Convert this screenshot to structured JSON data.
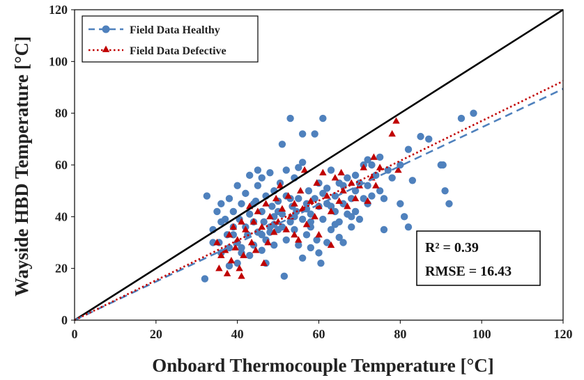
{
  "chart_data": {
    "type": "scatter",
    "title": "",
    "xlabel": "Onboard Thermocouple Temperature [°C]",
    "ylabel": "Wayside HBD Temperature [°C]",
    "xlim": [
      0,
      120
    ],
    "ylim": [
      0,
      120
    ],
    "x_ticks": [
      "0",
      "20",
      "40",
      "60",
      "80",
      "100",
      "120"
    ],
    "y_ticks": [
      "0",
      "20",
      "40",
      "60",
      "80",
      "100",
      "120"
    ],
    "grid": false,
    "legend_position": "top-left",
    "colors": {
      "healthy": "#4f81bd",
      "defective": "#c00000",
      "reference": "#000000"
    },
    "series": [
      {
        "name": "Field Data Healthy",
        "marker": "circle",
        "trendline": {
          "style": "dashed",
          "slope": 0.745,
          "intercept": 0
        },
        "points": [
          [
            32,
            16
          ],
          [
            32.5,
            48
          ],
          [
            34,
            35
          ],
          [
            35,
            42
          ],
          [
            35.5,
            30
          ],
          [
            36,
            45
          ],
          [
            36,
            26
          ],
          [
            37,
            39
          ],
          [
            37.5,
            33
          ],
          [
            38,
            47
          ],
          [
            38,
            28
          ],
          [
            39,
            42
          ],
          [
            39,
            36
          ],
          [
            40,
            52
          ],
          [
            40,
            30
          ],
          [
            40.5,
            39
          ],
          [
            41,
            45
          ],
          [
            41,
            26
          ],
          [
            42,
            36
          ],
          [
            42,
            49
          ],
          [
            42.5,
            33
          ],
          [
            43,
            41
          ],
          [
            43,
            56
          ],
          [
            44,
            38
          ],
          [
            44,
            29
          ],
          [
            44.5,
            46
          ],
          [
            45,
            34
          ],
          [
            45,
            52
          ],
          [
            46,
            42
          ],
          [
            46,
            27
          ],
          [
            46.5,
            38
          ],
          [
            47,
            48
          ],
          [
            47,
            31
          ],
          [
            48,
            36
          ],
          [
            48,
            57
          ],
          [
            48.5,
            44
          ],
          [
            49,
            40
          ],
          [
            49,
            29
          ],
          [
            50,
            46
          ],
          [
            50,
            35
          ],
          [
            50.5,
            53
          ],
          [
            51,
            41
          ],
          [
            51,
            68
          ],
          [
            51.5,
            17
          ],
          [
            52,
            31
          ],
          [
            52,
            48
          ],
          [
            53,
            38
          ],
          [
            53,
            78
          ],
          [
            53.5,
            44
          ],
          [
            54,
            35
          ],
          [
            54,
            55
          ],
          [
            54.5,
            42
          ],
          [
            55,
            29
          ],
          [
            55,
            47
          ],
          [
            56,
            39
          ],
          [
            56,
            72
          ],
          [
            56,
            61
          ],
          [
            57,
            45
          ],
          [
            57,
            33
          ],
          [
            57.5,
            50
          ],
          [
            58,
            41
          ],
          [
            58,
            36
          ],
          [
            59,
            72
          ],
          [
            59,
            47
          ],
          [
            59.5,
            31
          ],
          [
            60,
            44
          ],
          [
            60,
            53
          ],
          [
            60.5,
            22
          ],
          [
            61,
            78
          ],
          [
            61,
            39
          ],
          [
            62,
            45
          ],
          [
            62,
            51
          ],
          [
            63,
            35
          ],
          [
            63,
            58
          ],
          [
            64,
            42
          ],
          [
            64,
            48
          ],
          [
            65,
            38
          ],
          [
            65,
            53
          ],
          [
            66,
            30
          ],
          [
            66,
            45
          ],
          [
            67,
            41
          ],
          [
            67,
            55
          ],
          [
            68,
            47
          ],
          [
            68,
            36
          ],
          [
            69,
            50
          ],
          [
            69,
            42
          ],
          [
            70,
            53
          ],
          [
            70,
            39
          ],
          [
            71,
            60
          ],
          [
            71,
            47
          ],
          [
            72,
            52
          ],
          [
            72,
            62
          ],
          [
            73,
            48
          ],
          [
            74,
            56
          ],
          [
            75,
            50
          ],
          [
            75,
            63
          ],
          [
            76,
            35
          ],
          [
            76,
            47
          ],
          [
            77,
            58
          ],
          [
            78,
            55
          ],
          [
            80,
            45
          ],
          [
            80,
            60
          ],
          [
            81,
            40
          ],
          [
            82,
            36
          ],
          [
            82,
            66
          ],
          [
            83,
            54
          ],
          [
            85,
            71
          ],
          [
            87,
            70
          ],
          [
            90,
            60
          ],
          [
            90.5,
            60
          ],
          [
            91,
            50
          ],
          [
            92,
            45
          ],
          [
            95,
            78
          ],
          [
            98,
            80
          ],
          [
            45,
            58
          ],
          [
            52,
            58
          ],
          [
            55,
            59
          ],
          [
            48,
            34
          ],
          [
            43,
            25
          ],
          [
            47,
            22
          ],
          [
            56,
            24
          ],
          [
            60,
            26
          ],
          [
            38,
            21
          ],
          [
            40,
            22
          ],
          [
            58,
            28
          ],
          [
            62,
            30
          ],
          [
            65,
            32
          ],
          [
            44,
            45
          ],
          [
            50,
            42
          ],
          [
            53,
            47
          ],
          [
            57,
            43
          ],
          [
            61,
            49
          ],
          [
            63,
            44
          ],
          [
            66,
            52
          ],
          [
            69,
            56
          ],
          [
            73,
            60
          ],
          [
            34,
            30
          ],
          [
            36,
            38
          ],
          [
            39,
            33
          ],
          [
            41,
            28
          ],
          [
            46,
            33
          ],
          [
            49,
            37
          ],
          [
            54,
            40
          ],
          [
            58,
            38
          ],
          [
            64,
            37
          ],
          [
            68,
            40
          ],
          [
            72,
            45
          ],
          [
            46,
            55
          ],
          [
            49,
            50
          ],
          [
            51,
            36
          ]
        ]
      },
      {
        "name": "Field Data Defective",
        "marker": "triangle",
        "trendline": {
          "style": "dotted",
          "slope": 0.77,
          "intercept": 0
        },
        "points": [
          [
            35,
            30
          ],
          [
            35.5,
            20
          ],
          [
            36,
            25
          ],
          [
            37,
            27
          ],
          [
            37.5,
            18
          ],
          [
            38,
            33
          ],
          [
            38.5,
            23
          ],
          [
            39,
            36
          ],
          [
            39.5,
            28
          ],
          [
            40,
            31
          ],
          [
            40.5,
            20
          ],
          [
            41,
            38
          ],
          [
            41,
            17
          ],
          [
            41.5,
            25
          ],
          [
            42,
            35
          ],
          [
            43,
            44
          ],
          [
            43.5,
            30
          ],
          [
            44,
            38
          ],
          [
            44.5,
            27
          ],
          [
            45,
            42
          ],
          [
            46,
            36
          ],
          [
            46.5,
            22
          ],
          [
            47,
            45
          ],
          [
            47.5,
            30
          ],
          [
            48,
            40
          ],
          [
            49,
            34
          ],
          [
            49.5,
            47
          ],
          [
            50,
            38
          ],
          [
            50.5,
            52
          ],
          [
            51,
            43
          ],
          [
            52,
            35
          ],
          [
            52.5,
            48
          ],
          [
            53,
            40
          ],
          [
            54,
            45
          ],
          [
            55,
            31
          ],
          [
            55.5,
            50
          ],
          [
            56,
            43
          ],
          [
            56.5,
            58
          ],
          [
            57,
            37
          ],
          [
            58,
            46
          ],
          [
            59,
            40
          ],
          [
            59.5,
            53
          ],
          [
            60,
            44
          ],
          [
            61,
            57
          ],
          [
            62,
            48
          ],
          [
            63,
            42
          ],
          [
            64,
            55
          ],
          [
            65,
            46
          ],
          [
            65.5,
            57
          ],
          [
            66,
            50
          ],
          [
            67,
            44
          ],
          [
            68,
            53
          ],
          [
            69,
            47
          ],
          [
            70,
            52
          ],
          [
            71,
            59
          ],
          [
            72,
            46
          ],
          [
            73,
            55
          ],
          [
            73.5,
            63
          ],
          [
            74,
            52
          ],
          [
            75,
            59
          ],
          [
            78,
            72
          ],
          [
            79,
            77
          ],
          [
            79.5,
            58
          ],
          [
            63,
            29
          ],
          [
            60,
            33
          ],
          [
            54,
            33
          ]
        ]
      },
      {
        "name": "",
        "type": "line",
        "points": [
          [
            0,
            0
          ],
          [
            120,
            120
          ]
        ]
      }
    ],
    "annotations": [
      {
        "label": "R² = 0.39"
      },
      {
        "label": "RMSE = 16.43"
      }
    ]
  }
}
